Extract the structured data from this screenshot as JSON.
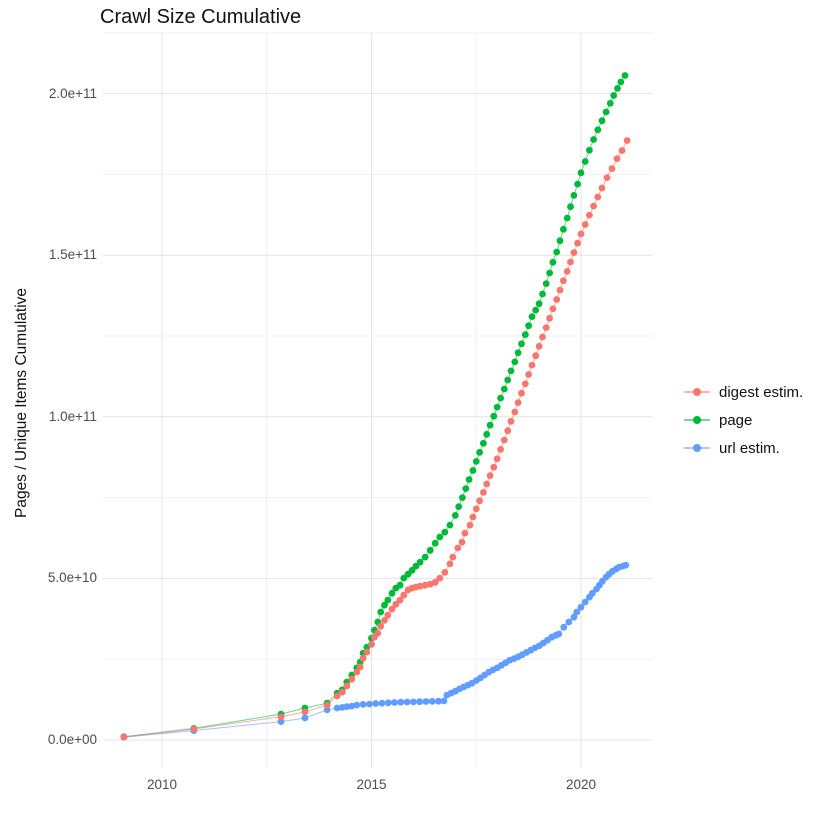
{
  "title": "Crawl Size Cumulative",
  "chart_data": {
    "type": "scatter",
    "title": "Crawl Size Cumulative",
    "xlabel": "",
    "ylabel": "Pages / Unique Items Cumulative",
    "legend_position": "right",
    "grid": "on",
    "x_axis": {
      "tick_labels": [
        "2010",
        "2015",
        "2020"
      ],
      "tick_values": [
        2010,
        2015,
        2020
      ],
      "minor_tick_values": [
        2012.5,
        2017.5
      ],
      "range": [
        2008.6,
        2021.7
      ]
    },
    "y_axis": {
      "tick_labels": [
        "0.0e+00",
        "5.0e+10",
        "1.0e+11",
        "1.5e+11",
        "2.0e+11"
      ],
      "tick_values_billions": [
        0,
        50,
        100,
        150,
        200
      ],
      "minor_tick_values_billions": [
        25,
        75,
        125,
        175,
        218.8
      ],
      "range_billions": [
        -8.7,
        218.8
      ]
    },
    "series": [
      {
        "name": "digest estim.",
        "color": "#F8766D",
        "points": [
          [
            2009.09,
            0.9
          ],
          [
            2010.76,
            3.4
          ],
          [
            2012.84,
            7.2
          ],
          [
            2013.41,
            8.7
          ],
          [
            2013.94,
            10.8
          ],
          [
            2014.18,
            13.6
          ],
          [
            2014.3,
            14.8
          ],
          [
            2014.41,
            16.7
          ],
          [
            2014.53,
            18.8
          ],
          [
            2014.65,
            21.0
          ],
          [
            2014.73,
            22.6
          ],
          [
            2014.8,
            25.3
          ],
          [
            2014.89,
            27.2
          ],
          [
            2015.0,
            29.6
          ],
          [
            2015.07,
            31.8
          ],
          [
            2015.15,
            33.0
          ],
          [
            2015.22,
            35.2
          ],
          [
            2015.31,
            37.0
          ],
          [
            2015.39,
            38.6
          ],
          [
            2015.49,
            40.5
          ],
          [
            2015.58,
            42.0
          ],
          [
            2015.68,
            43.3
          ],
          [
            2015.77,
            44.8
          ],
          [
            2015.87,
            46.4
          ],
          [
            2015.97,
            47.0
          ],
          [
            2016.06,
            47.3
          ],
          [
            2016.16,
            47.6
          ],
          [
            2016.28,
            47.9
          ],
          [
            2016.4,
            48.2
          ],
          [
            2016.52,
            48.8
          ],
          [
            2016.63,
            50.1
          ],
          [
            2016.75,
            51.9
          ],
          [
            2016.87,
            54.5
          ],
          [
            2016.94,
            56.6
          ],
          [
            2017.06,
            59.4
          ],
          [
            2017.16,
            61.2
          ],
          [
            2017.23,
            64.0
          ],
          [
            2017.35,
            66.5
          ],
          [
            2017.42,
            69.0
          ],
          [
            2017.5,
            71.5
          ],
          [
            2017.58,
            74.0
          ],
          [
            2017.67,
            76.6
          ],
          [
            2017.75,
            79.2
          ],
          [
            2017.83,
            81.8
          ],
          [
            2017.92,
            84.4
          ],
          [
            2018.0,
            87.0
          ],
          [
            2018.08,
            89.9
          ],
          [
            2018.17,
            92.8
          ],
          [
            2018.25,
            95.7
          ],
          [
            2018.33,
            98.6
          ],
          [
            2018.42,
            101.5
          ],
          [
            2018.5,
            104.4
          ],
          [
            2018.58,
            107.3
          ],
          [
            2018.67,
            110.2
          ],
          [
            2018.75,
            113.1
          ],
          [
            2018.83,
            116.0
          ],
          [
            2018.92,
            118.9
          ],
          [
            2019.0,
            121.8
          ],
          [
            2019.08,
            124.7
          ],
          [
            2019.17,
            127.6
          ],
          [
            2019.25,
            130.5
          ],
          [
            2019.33,
            133.4
          ],
          [
            2019.42,
            136.3
          ],
          [
            2019.5,
            139.2
          ],
          [
            2019.58,
            142.1
          ],
          [
            2019.67,
            145.0
          ],
          [
            2019.75,
            147.9
          ],
          [
            2019.83,
            150.8
          ],
          [
            2019.92,
            153.7
          ],
          [
            2020.0,
            156.6
          ],
          [
            2020.1,
            159.5
          ],
          [
            2020.2,
            162.4
          ],
          [
            2020.3,
            165.2
          ],
          [
            2020.4,
            168.0
          ],
          [
            2020.5,
            170.8
          ],
          [
            2020.62,
            174.0
          ],
          [
            2020.74,
            176.8
          ],
          [
            2020.86,
            179.9
          ],
          [
            2020.98,
            182.4
          ],
          [
            2021.1,
            185.5
          ]
        ]
      },
      {
        "name": "page",
        "color": "#00BA38",
        "points": [
          [
            2009.09,
            1.0
          ],
          [
            2010.76,
            3.6
          ],
          [
            2012.84,
            8.0
          ],
          [
            2013.41,
            9.9
          ],
          [
            2013.94,
            11.4
          ],
          [
            2014.18,
            14.5
          ],
          [
            2014.3,
            15.5
          ],
          [
            2014.41,
            17.9
          ],
          [
            2014.53,
            20.1
          ],
          [
            2014.65,
            22.3
          ],
          [
            2014.73,
            24.1
          ],
          [
            2014.8,
            26.9
          ],
          [
            2014.89,
            28.7
          ],
          [
            2015.0,
            31.5
          ],
          [
            2015.07,
            34.0
          ],
          [
            2015.15,
            36.5
          ],
          [
            2015.22,
            39.6
          ],
          [
            2015.31,
            41.7
          ],
          [
            2015.39,
            43.3
          ],
          [
            2015.49,
            45.4
          ],
          [
            2015.58,
            47.0
          ],
          [
            2015.68,
            47.9
          ],
          [
            2015.77,
            50.1
          ],
          [
            2015.87,
            51.3
          ],
          [
            2015.97,
            52.5
          ],
          [
            2016.06,
            53.8
          ],
          [
            2016.16,
            55.0
          ],
          [
            2016.28,
            56.6
          ],
          [
            2016.4,
            58.7
          ],
          [
            2016.52,
            60.9
          ],
          [
            2016.63,
            62.8
          ],
          [
            2016.75,
            64.3
          ],
          [
            2016.87,
            66.5
          ],
          [
            2017.0,
            69.5
          ],
          [
            2017.08,
            72.2
          ],
          [
            2017.17,
            75.0
          ],
          [
            2017.25,
            77.8
          ],
          [
            2017.33,
            80.6
          ],
          [
            2017.42,
            83.4
          ],
          [
            2017.5,
            86.2
          ],
          [
            2017.58,
            89.0
          ],
          [
            2017.67,
            91.8
          ],
          [
            2017.75,
            94.6
          ],
          [
            2017.83,
            97.4
          ],
          [
            2017.92,
            100.2
          ],
          [
            2018.0,
            103.0
          ],
          [
            2018.08,
            105.8
          ],
          [
            2018.17,
            108.6
          ],
          [
            2018.25,
            111.4
          ],
          [
            2018.33,
            114.2
          ],
          [
            2018.42,
            117.0
          ],
          [
            2018.5,
            119.8
          ],
          [
            2018.58,
            122.6
          ],
          [
            2018.67,
            125.4
          ],
          [
            2018.75,
            128.2
          ],
          [
            2018.83,
            131.0
          ],
          [
            2018.92,
            133.0
          ],
          [
            2019.0,
            135.0
          ],
          [
            2019.08,
            138.0
          ],
          [
            2019.17,
            141.2
          ],
          [
            2019.25,
            144.5
          ],
          [
            2019.33,
            147.8
          ],
          [
            2019.42,
            151.0
          ],
          [
            2019.5,
            154.5
          ],
          [
            2019.58,
            158.0
          ],
          [
            2019.67,
            161.5
          ],
          [
            2019.75,
            165.0
          ],
          [
            2019.83,
            168.5
          ],
          [
            2019.92,
            172.0
          ],
          [
            2020.0,
            175.5
          ],
          [
            2020.1,
            179.0
          ],
          [
            2020.2,
            182.5
          ],
          [
            2020.3,
            185.8
          ],
          [
            2020.4,
            188.8
          ],
          [
            2020.5,
            191.6
          ],
          [
            2020.6,
            194.3
          ],
          [
            2020.7,
            197.0
          ],
          [
            2020.78,
            199.4
          ],
          [
            2020.87,
            201.6
          ],
          [
            2020.95,
            203.6
          ],
          [
            2021.05,
            205.6
          ]
        ]
      },
      {
        "name": "url estim.",
        "color": "#619CFF",
        "points": [
          [
            2009.09,
            0.9
          ],
          [
            2010.76,
            2.9
          ],
          [
            2012.84,
            5.7
          ],
          [
            2013.41,
            6.8
          ],
          [
            2013.94,
            9.3
          ],
          [
            2014.18,
            9.9
          ],
          [
            2014.3,
            10.1
          ],
          [
            2014.41,
            10.3
          ],
          [
            2014.53,
            10.5
          ],
          [
            2014.65,
            10.8
          ],
          [
            2014.8,
            11.0
          ],
          [
            2014.95,
            11.1
          ],
          [
            2015.1,
            11.3
          ],
          [
            2015.25,
            11.4
          ],
          [
            2015.4,
            11.5
          ],
          [
            2015.55,
            11.6
          ],
          [
            2015.7,
            11.7
          ],
          [
            2015.85,
            11.75
          ],
          [
            2016.0,
            11.8
          ],
          [
            2016.15,
            11.85
          ],
          [
            2016.3,
            11.9
          ],
          [
            2016.45,
            11.95
          ],
          [
            2016.6,
            12.0
          ],
          [
            2016.73,
            12.1
          ],
          [
            2016.8,
            13.9
          ],
          [
            2016.9,
            14.5
          ],
          [
            2017.0,
            15.1
          ],
          [
            2017.1,
            15.8
          ],
          [
            2017.2,
            16.4
          ],
          [
            2017.3,
            17.0
          ],
          [
            2017.4,
            17.6
          ],
          [
            2017.5,
            18.4
          ],
          [
            2017.6,
            19.2
          ],
          [
            2017.7,
            20.1
          ],
          [
            2017.8,
            21.0
          ],
          [
            2017.9,
            21.7
          ],
          [
            2018.0,
            22.3
          ],
          [
            2018.1,
            23.1
          ],
          [
            2018.2,
            23.9
          ],
          [
            2018.3,
            24.7
          ],
          [
            2018.4,
            25.2
          ],
          [
            2018.5,
            25.7
          ],
          [
            2018.6,
            26.4
          ],
          [
            2018.7,
            27.1
          ],
          [
            2018.8,
            27.8
          ],
          [
            2018.9,
            28.5
          ],
          [
            2019.0,
            29.1
          ],
          [
            2019.1,
            30.0
          ],
          [
            2019.2,
            30.9
          ],
          [
            2019.3,
            31.8
          ],
          [
            2019.4,
            32.4
          ],
          [
            2019.47,
            32.8
          ],
          [
            2019.59,
            34.9
          ],
          [
            2019.71,
            36.5
          ],
          [
            2019.83,
            38.0
          ],
          [
            2019.9,
            39.6
          ],
          [
            2020.0,
            41.1
          ],
          [
            2020.1,
            42.7
          ],
          [
            2020.2,
            44.2
          ],
          [
            2020.27,
            45.4
          ],
          [
            2020.37,
            46.7
          ],
          [
            2020.44,
            47.9
          ],
          [
            2020.51,
            49.1
          ],
          [
            2020.6,
            50.4
          ],
          [
            2020.67,
            51.3
          ],
          [
            2020.75,
            52.2
          ],
          [
            2020.84,
            52.9
          ],
          [
            2020.91,
            53.5
          ],
          [
            2021.0,
            53.8
          ],
          [
            2021.07,
            54.1
          ]
        ]
      }
    ]
  },
  "colors": {
    "major_grid": "#E4E4E4",
    "minor_grid": "#F0F0F0",
    "tick_text": "#4D4D4D",
    "title_text": "#111111"
  }
}
